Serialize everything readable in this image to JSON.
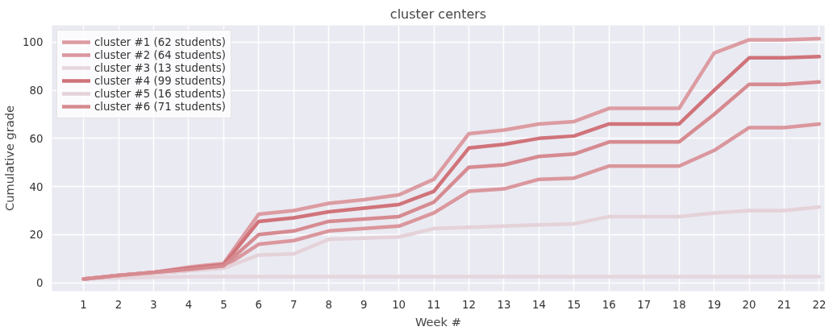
{
  "chart_data": {
    "type": "line",
    "title": "cluster centers",
    "xlabel": "Week #",
    "ylabel": "Cumulative grade",
    "x": [
      1,
      2,
      3,
      4,
      5,
      6,
      7,
      8,
      9,
      10,
      11,
      12,
      13,
      14,
      15,
      16,
      17,
      18,
      19,
      20,
      21,
      22
    ],
    "xlim": [
      0.1,
      22.15
    ],
    "xticks": [
      1,
      2,
      3,
      4,
      5,
      6,
      7,
      8,
      9,
      10,
      11,
      12,
      13,
      14,
      15,
      16,
      17,
      18,
      19,
      20,
      21,
      22
    ],
    "ylim": [
      -3.5,
      107
    ],
    "yticks": [
      0,
      20,
      40,
      60,
      80,
      100
    ],
    "grid": true,
    "legend": "top left",
    "marker": "none",
    "line_style": "solid",
    "series": [
      {
        "name": "cluster #1 (62 students)",
        "color": "#dc9ca2",
        "values": [
          1.5,
          3,
          4.3,
          6.5,
          8,
          28.5,
          30,
          33,
          34.5,
          36.5,
          43,
          62,
          63.5,
          66,
          67,
          72.5,
          72.5,
          72.5,
          95.5,
          101,
          101,
          101.5
        ]
      },
      {
        "name": "cluster #2 (64 students)",
        "color": "#da979d",
        "values": [
          1.5,
          3,
          4,
          5,
          6.5,
          16,
          17.5,
          21.5,
          22.5,
          23.5,
          29,
          38,
          39,
          43,
          43.5,
          48.5,
          48.5,
          48.5,
          55,
          64.5,
          64.5,
          66
        ]
      },
      {
        "name": "cluster #3 (13 students)",
        "color": "#e6d6dd",
        "values": [
          1.5,
          2,
          2.3,
          2.5,
          2.5,
          2.5,
          2.5,
          2.5,
          2.5,
          2.5,
          2.5,
          2.5,
          2.5,
          2.5,
          2.5,
          2.5,
          2.5,
          2.5,
          2.5,
          2.5,
          2.5,
          2.5
        ]
      },
      {
        "name": "cluster #4 (99 students)",
        "color": "#d0737a",
        "values": [
          1.5,
          3,
          4.3,
          6,
          7.5,
          25.5,
          27,
          29.5,
          31,
          32.5,
          38,
          56,
          57.5,
          60,
          61,
          66,
          66,
          66,
          80,
          93.5,
          93.5,
          94
        ]
      },
      {
        "name": "cluster #5 (16 students)",
        "color": "#e5d2d9",
        "values": [
          1.5,
          3,
          4,
          5,
          6,
          11.5,
          12,
          18,
          18.5,
          19,
          22.5,
          23,
          23.5,
          24,
          24.5,
          27.5,
          27.5,
          27.5,
          29,
          30,
          30,
          31.5
        ]
      },
      {
        "name": "cluster #6 (71 students)",
        "color": "#d68b91",
        "values": [
          1.5,
          3,
          4.3,
          5.5,
          7,
          20,
          21.5,
          25.5,
          26.5,
          27.5,
          33.5,
          48,
          49,
          52.5,
          53.5,
          58.5,
          58.5,
          58.5,
          70,
          82.5,
          82.5,
          83.5
        ]
      }
    ]
  }
}
